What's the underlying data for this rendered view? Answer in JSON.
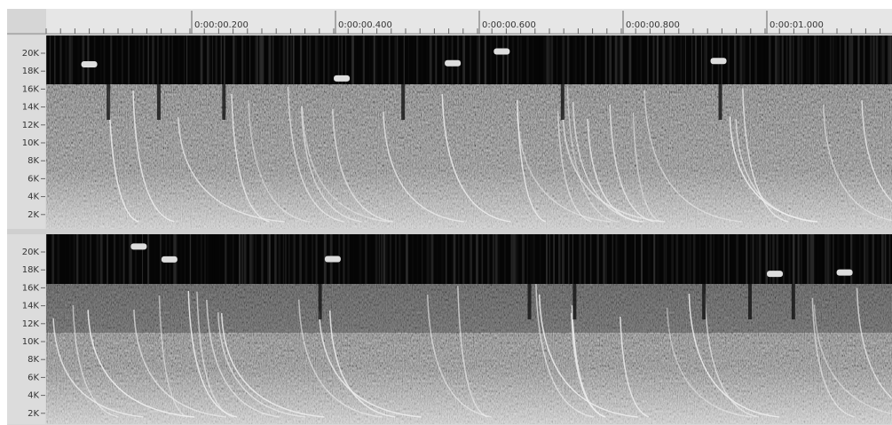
{
  "ruler": {
    "labels": [
      "0:00:00.200",
      "0:00:00.400",
      "0:00:00.600",
      "0:00:00.800",
      "0:00:01.000"
    ]
  },
  "tracks": [
    {
      "freq_labels": [
        "20K",
        "18K",
        "16K",
        "14K",
        "12K",
        "10K",
        "8K",
        "6K",
        "4K",
        "2K"
      ]
    },
    {
      "freq_labels": [
        "20K",
        "18K",
        "16K",
        "14K",
        "12K",
        "10K",
        "8K",
        "6K",
        "4K",
        "2K"
      ]
    }
  ]
}
